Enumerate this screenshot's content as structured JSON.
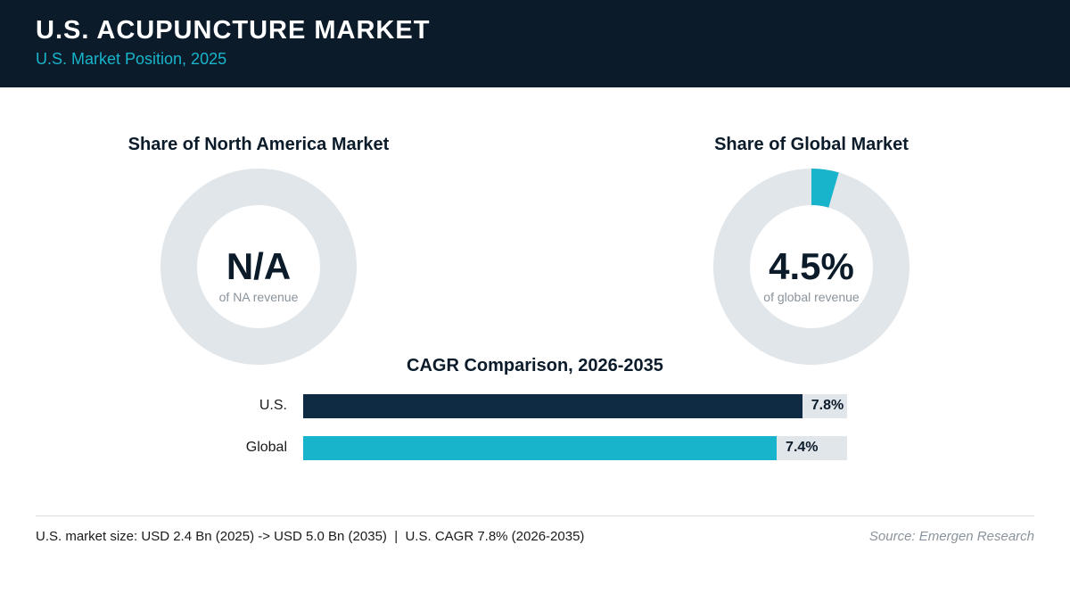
{
  "header": {
    "title": "U.S. ACUPUNCTURE MARKET",
    "subtitle": "U.S. Market Position, 2025"
  },
  "colors": {
    "header_bg": "#0b1b2a",
    "accent": "#18b4cb",
    "navy": "#0f2a43",
    "track": "#e1e6ea"
  },
  "chart_data": [
    {
      "type": "pie",
      "title": "Share of North America Market",
      "center_value": "N/A",
      "center_caption": "of NA revenue",
      "share_percent": null
    },
    {
      "type": "pie",
      "title": "Share of Global Market",
      "center_value": "4.5%",
      "center_caption": "of global revenue",
      "share_percent": 4.5
    },
    {
      "type": "bar",
      "title": "CAGR Comparison, 2026-2035",
      "categories": [
        "U.S.",
        "Global"
      ],
      "values": [
        7.8,
        7.4
      ],
      "value_labels": [
        "7.8%",
        "7.4%"
      ],
      "xlim": [
        0,
        8.5
      ]
    }
  ],
  "footer": {
    "note": "U.S. market size: USD 2.4 Bn (2025) -> USD 5.0 Bn (2035)  |  U.S. CAGR 7.8% (2026-2035)",
    "source": "Source: Emergen Research"
  }
}
